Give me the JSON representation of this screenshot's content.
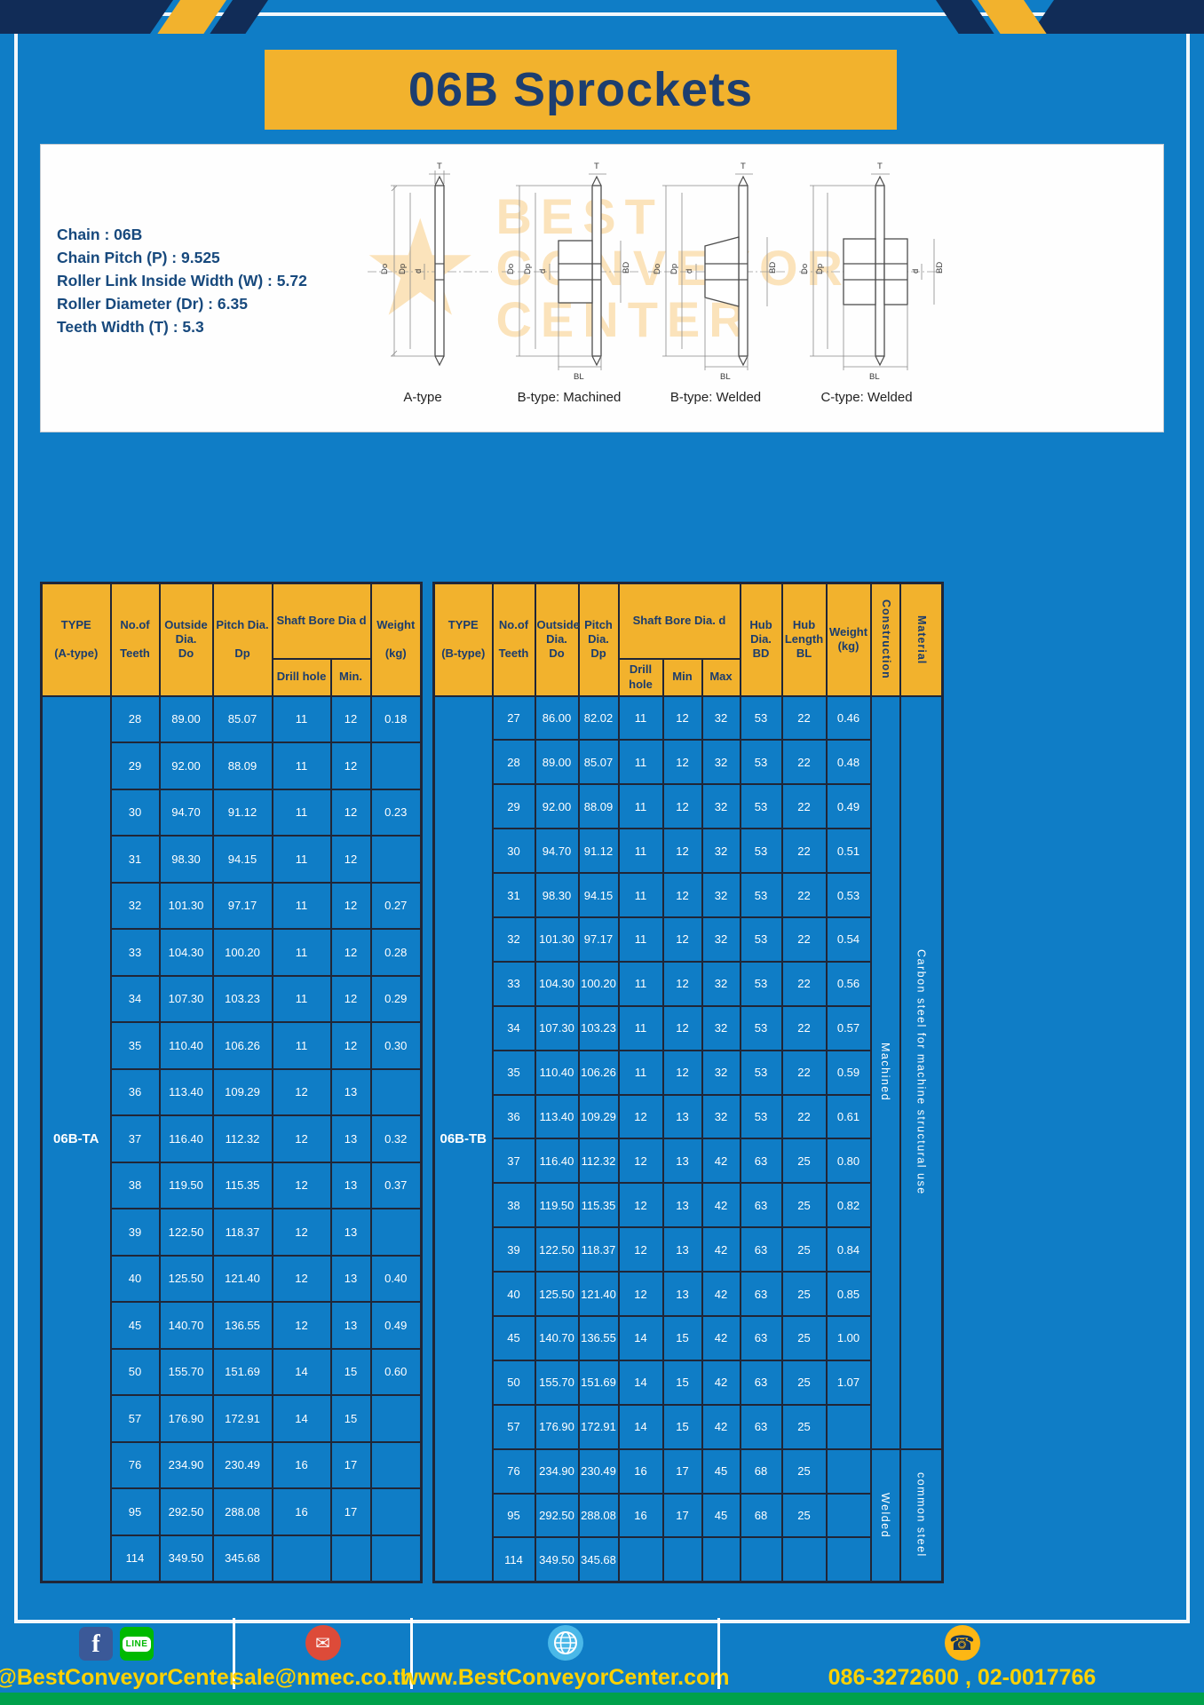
{
  "page": {
    "title": "06B Sprockets"
  },
  "specs": {
    "lines": [
      "Chain : 06B",
      "Chain Pitch (P) : 9.525",
      "Roller Link Inside Width (W) : 5.72",
      "Roller Diameter (Dr) : 6.35",
      "Teeth Width (T) : 5.3"
    ]
  },
  "diagrams": {
    "labels": [
      "A-type",
      "B-type: Machined",
      "B-type: Welded",
      "C-type: Welded"
    ],
    "dims": {
      "T": "T",
      "Do": "Do",
      "Dp": "Dp",
      "d": "d",
      "BD": "BD",
      "BL": "BL"
    },
    "watermark": {
      "line1": "BEST",
      "line2": "CONVEYOR",
      "line3": "CENTER",
      "star": "★"
    }
  },
  "table_a": {
    "type_label": "06B-TA",
    "headers": {
      "type": "TYPE\n\n(A-type)",
      "teeth": "No.of\n\nTeeth",
      "outside": "Outside\nDia.\nDo",
      "pitch": "Pitch Dia.\n\nDp",
      "bore": "Shaft Bore Dia d",
      "drill": "Drill hole",
      "min": "Min.",
      "weight": "Weight\n\n(kg)"
    },
    "rows": [
      [
        "28",
        "89.00",
        "85.07",
        "11",
        "12",
        "0.18"
      ],
      [
        "29",
        "92.00",
        "88.09",
        "11",
        "12",
        ""
      ],
      [
        "30",
        "94.70",
        "91.12",
        "11",
        "12",
        "0.23"
      ],
      [
        "31",
        "98.30",
        "94.15",
        "11",
        "12",
        ""
      ],
      [
        "32",
        "101.30",
        "97.17",
        "11",
        "12",
        "0.27"
      ],
      [
        "33",
        "104.30",
        "100.20",
        "11",
        "12",
        "0.28"
      ],
      [
        "34",
        "107.30",
        "103.23",
        "11",
        "12",
        "0.29"
      ],
      [
        "35",
        "110.40",
        "106.26",
        "11",
        "12",
        "0.30"
      ],
      [
        "36",
        "113.40",
        "109.29",
        "12",
        "13",
        ""
      ],
      [
        "37",
        "116.40",
        "112.32",
        "12",
        "13",
        "0.32"
      ],
      [
        "38",
        "119.50",
        "115.35",
        "12",
        "13",
        "0.37"
      ],
      [
        "39",
        "122.50",
        "118.37",
        "12",
        "13",
        ""
      ],
      [
        "40",
        "125.50",
        "121.40",
        "12",
        "13",
        "0.40"
      ],
      [
        "45",
        "140.70",
        "136.55",
        "12",
        "13",
        "0.49"
      ],
      [
        "50",
        "155.70",
        "151.69",
        "14",
        "15",
        "0.60"
      ],
      [
        "57",
        "176.90",
        "172.91",
        "14",
        "15",
        ""
      ],
      [
        "76",
        "234.90",
        "230.49",
        "16",
        "17",
        ""
      ],
      [
        "95",
        "292.50",
        "288.08",
        "16",
        "17",
        ""
      ],
      [
        "114",
        "349.50",
        "345.68",
        "",
        "",
        ""
      ]
    ],
    "vcols": []
  },
  "table_b": {
    "type_label": "06B-TB",
    "headers": {
      "type": "TYPE\n\n(B-type)",
      "teeth": "No.of\n\nTeeth",
      "outside": "Outside\nDia.\nDo",
      "pitch": "Pitch\nDia.\nDp",
      "bore": "Shaft Bore Dia. d",
      "drill": "Drill hole",
      "min": "Min",
      "max": "Max",
      "hub_dia": "Hub\nDia.\nBD",
      "hub_len": "Hub\nLength\nBL",
      "weight": "Weight\n(kg)",
      "construction": "Construction",
      "material": "Material"
    },
    "rows": [
      [
        "27",
        "86.00",
        "82.02",
        "11",
        "12",
        "32",
        "53",
        "22",
        "0.46"
      ],
      [
        "28",
        "89.00",
        "85.07",
        "11",
        "12",
        "32",
        "53",
        "22",
        "0.48"
      ],
      [
        "29",
        "92.00",
        "88.09",
        "11",
        "12",
        "32",
        "53",
        "22",
        "0.49"
      ],
      [
        "30",
        "94.70",
        "91.12",
        "11",
        "12",
        "32",
        "53",
        "22",
        "0.51"
      ],
      [
        "31",
        "98.30",
        "94.15",
        "11",
        "12",
        "32",
        "53",
        "22",
        "0.53"
      ],
      [
        "32",
        "101.30",
        "97.17",
        "11",
        "12",
        "32",
        "53",
        "22",
        "0.54"
      ],
      [
        "33",
        "104.30",
        "100.20",
        "11",
        "12",
        "32",
        "53",
        "22",
        "0.56"
      ],
      [
        "34",
        "107.30",
        "103.23",
        "11",
        "12",
        "32",
        "53",
        "22",
        "0.57"
      ],
      [
        "35",
        "110.40",
        "106.26",
        "11",
        "12",
        "32",
        "53",
        "22",
        "0.59"
      ],
      [
        "36",
        "113.40",
        "109.29",
        "12",
        "13",
        "32",
        "53",
        "22",
        "0.61"
      ],
      [
        "37",
        "116.40",
        "112.32",
        "12",
        "13",
        "42",
        "63",
        "25",
        "0.80"
      ],
      [
        "38",
        "119.50",
        "115.35",
        "12",
        "13",
        "42",
        "63",
        "25",
        "0.82"
      ],
      [
        "39",
        "122.50",
        "118.37",
        "12",
        "13",
        "42",
        "63",
        "25",
        "0.84"
      ],
      [
        "40",
        "125.50",
        "121.40",
        "12",
        "13",
        "42",
        "63",
        "25",
        "0.85"
      ],
      [
        "45",
        "140.70",
        "136.55",
        "14",
        "15",
        "42",
        "63",
        "25",
        "1.00"
      ],
      [
        "50",
        "155.70",
        "151.69",
        "14",
        "15",
        "42",
        "63",
        "25",
        "1.07"
      ],
      [
        "57",
        "176.90",
        "172.91",
        "14",
        "15",
        "42",
        "63",
        "25",
        ""
      ],
      [
        "76",
        "234.90",
        "230.49",
        "16",
        "17",
        "45",
        "68",
        "25",
        ""
      ],
      [
        "95",
        "292.50",
        "288.08",
        "16",
        "17",
        "45",
        "68",
        "25",
        ""
      ],
      [
        "114",
        "349.50",
        "345.68",
        "",
        "",
        "",
        "",
        "",
        ""
      ]
    ],
    "vcols": [
      {
        "name": "construction-cell",
        "blocks": [
          {
            "label": "Machined",
            "span": 17
          },
          {
            "label": "Welded",
            "span": 3
          }
        ]
      },
      {
        "name": "material-cell",
        "blocks": [
          {
            "label": "Carbon steel for machine structural use",
            "span": 17
          },
          {
            "label": "common steel",
            "span": 3
          }
        ]
      }
    ]
  },
  "footer": {
    "facebook": "@BestConveyorCenter",
    "email": "sale@nmec.co.th",
    "website": "www.BestConveyorCenter.com",
    "phones": "086-3272600 , 02-0017766",
    "icons": {
      "facebook_glyph": "f",
      "line_text": "LINE",
      "mail_glyph": "✉",
      "phone_glyph": "☎"
    }
  },
  "colors": {
    "page_blue": "#0f7dc6",
    "accent_yellow": "#f2b22d",
    "navy": "#1d3e6f",
    "footer_text_yellow": "#ffd200",
    "footer_green": "#00a14b"
  }
}
